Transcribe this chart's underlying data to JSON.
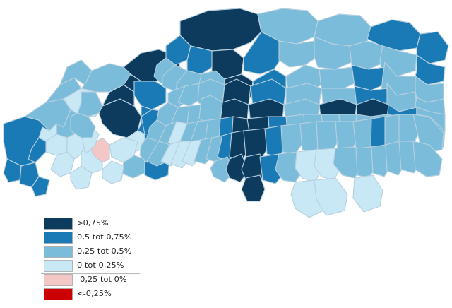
{
  "colors": {
    "dark_blue": "#0d3b5e",
    "mid_blue": "#1a7ab5",
    "light_blue": "#7bbcdb",
    "very_light_blue": "#c9e8f5",
    "light_pink": "#f5c6c6",
    "red": "#cc0000",
    "border": "#b8d0de",
    "background": "#ffffff"
  },
  "legend_labels": [
    ">0,75%",
    "0,5 tot 0,75%",
    "0,25 tot 0,5%",
    "0 tot 0,25%",
    "-0,25 tot 0%",
    "<-0,25%"
  ],
  "legend_colors": [
    "#0d3b5e",
    "#1a7ab5",
    "#7bbcdb",
    "#c9e8f5",
    "#f5c6c6",
    "#cc0000"
  ],
  "figsize": [
    6.4,
    4.36
  ],
  "dpi": 100
}
